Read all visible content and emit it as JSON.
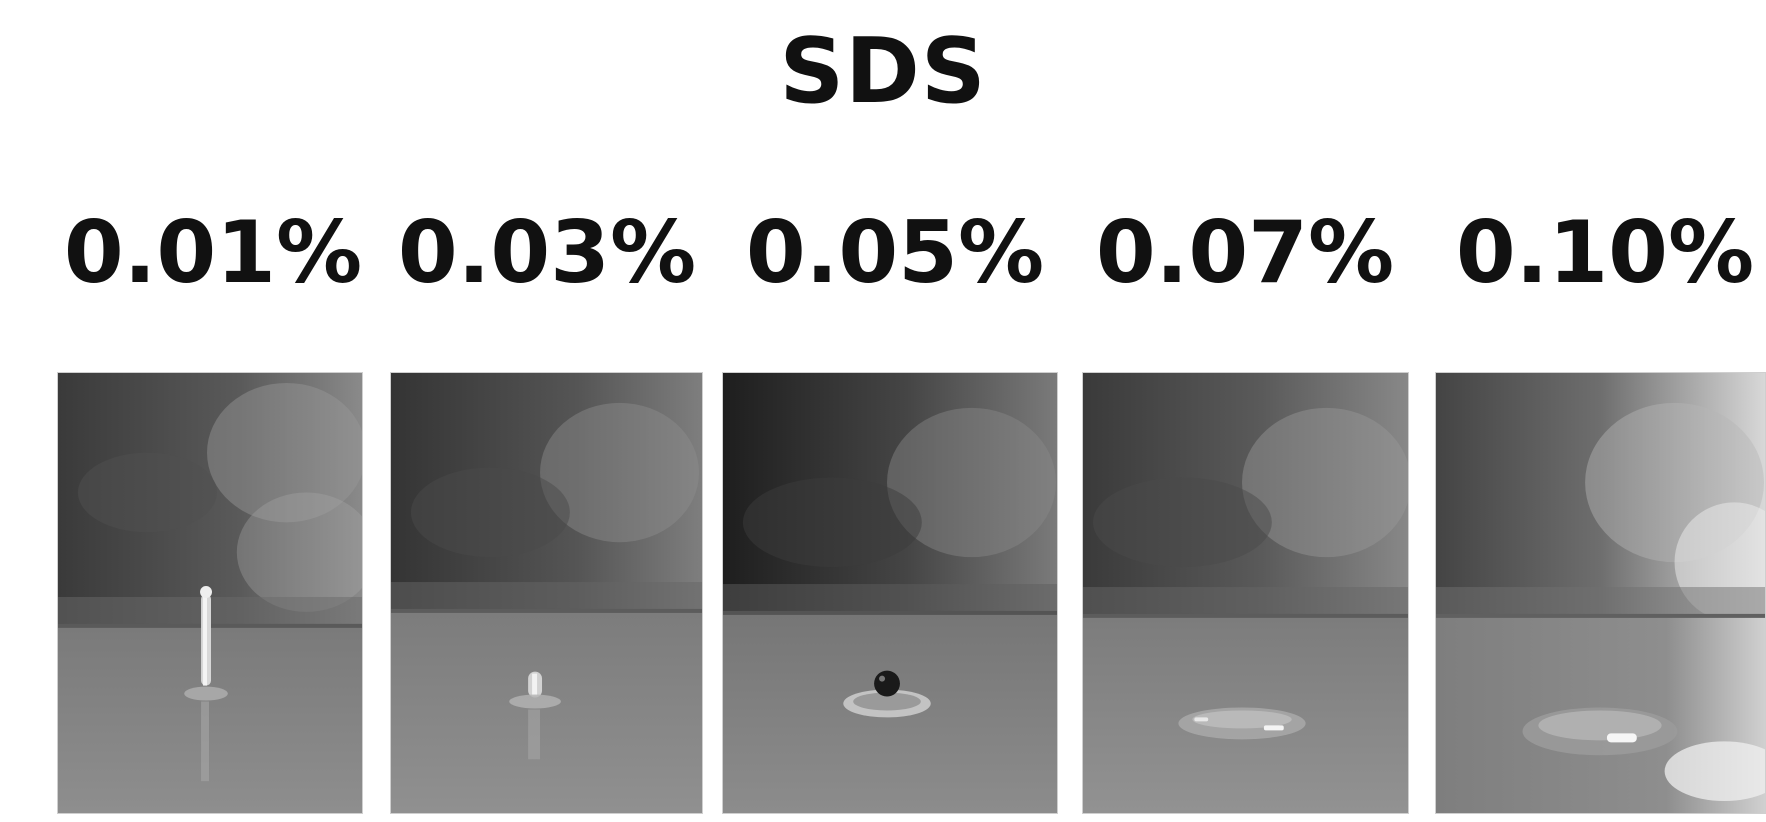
{
  "title": "SDS",
  "concentrations": [
    {
      "label": "0.01%",
      "stage": "jet"
    },
    {
      "label": "0.03%",
      "stage": "small-jet"
    },
    {
      "label": "0.05%",
      "stage": "dark-bead"
    },
    {
      "label": "0.07%",
      "stage": "flat-drop"
    },
    {
      "label": "0.10%",
      "stage": "spread-drop"
    }
  ],
  "colors": {
    "text": "#111111",
    "background": "#ffffff",
    "photo_dark": "#2e2e2e",
    "photo_surface": "#8a8a8a"
  }
}
